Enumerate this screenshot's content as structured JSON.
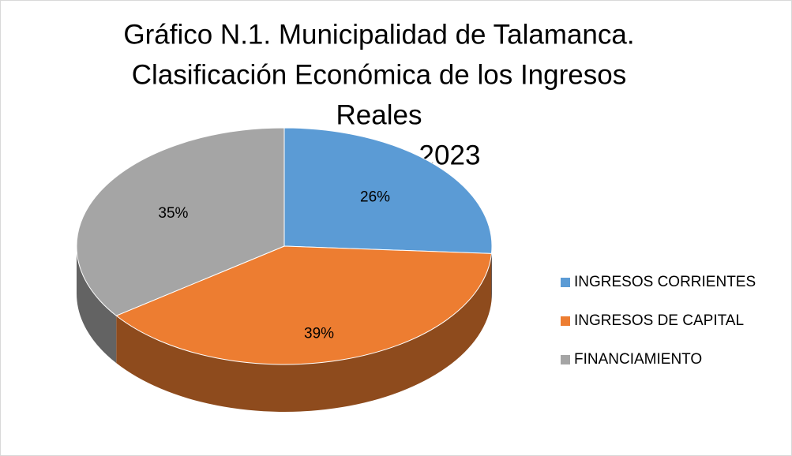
{
  "chart_data": {
    "type": "pie",
    "title": [
      "Gráfico N.1. Municipalidad de Talamanca.",
      "Clasificación Económica de los Ingresos",
      "Reales",
      "I Semestre 2023"
    ],
    "categories": [
      "INGRESOS CORRIENTES",
      "INGRESOS DE CAPITAL",
      "FINANCIAMIENTO"
    ],
    "values": [
      26,
      39,
      35
    ],
    "value_labels": [
      "26%",
      "39%",
      "35%"
    ],
    "colors": [
      "#5b9bd5",
      "#ed7d31",
      "#a5a5a5"
    ],
    "legend": "right"
  }
}
